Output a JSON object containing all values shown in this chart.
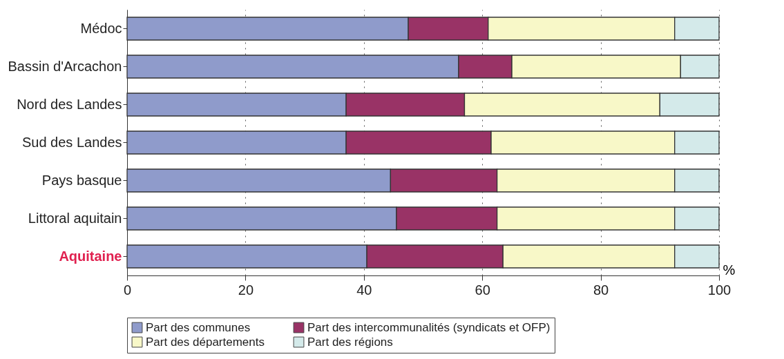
{
  "chart_data": {
    "type": "bar",
    "orientation": "horizontal",
    "stacked": true,
    "xlabel": "%",
    "categories": [
      "Médoc",
      "Bassin d'Arcachon",
      "Nord des Landes",
      "Sud des Landes",
      "Pays basque",
      "Littoral aquitain",
      "Aquitaine"
    ],
    "series": [
      {
        "name": "Part des communes",
        "color": "#8f9bcb",
        "values": [
          47.5,
          56,
          37,
          37,
          44.5,
          45.5,
          40.5
        ]
      },
      {
        "name": "Part des intercommunalités (syndicats et OFP)",
        "color": "#993366",
        "values": [
          13.5,
          9,
          20,
          24.5,
          18,
          17,
          23
        ]
      },
      {
        "name": "Part des départements",
        "color": "#f8f8c8",
        "values": [
          31.5,
          28.5,
          33,
          31,
          30,
          30,
          29
        ]
      },
      {
        "name": "Part des régions",
        "color": "#d4eaea",
        "values": [
          7.5,
          6.5,
          10,
          7.5,
          7.5,
          7.5,
          7.5
        ]
      }
    ],
    "xlim": [
      0,
      100
    ],
    "xticks": [
      0,
      20,
      40,
      60,
      80,
      100
    ],
    "grid": "x",
    "legend": "bottom"
  }
}
